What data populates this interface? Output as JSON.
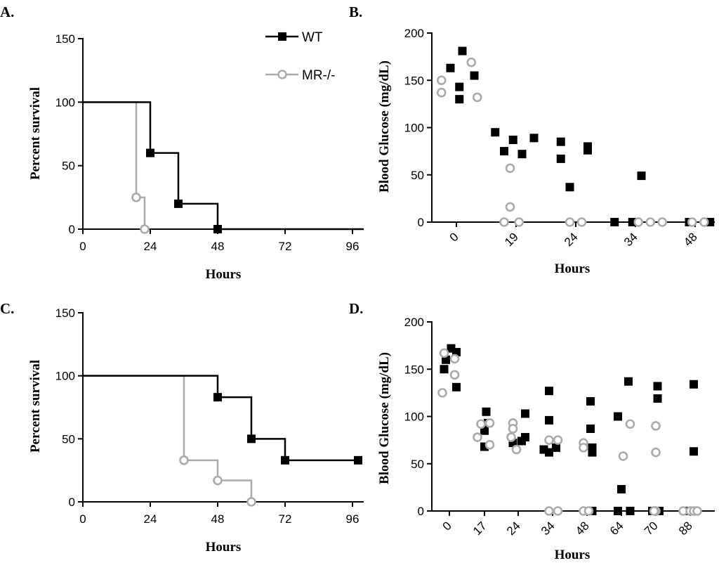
{
  "colors": {
    "wt": "#000000",
    "mr": "#aaaaaa"
  },
  "legend": {
    "wt": "WT",
    "mr": "MR-/-"
  },
  "chart_data": [
    {
      "panel": "A.",
      "type": "line",
      "subtype": "kaplan-meier",
      "xlabel": "Hours",
      "ylabel": "Percent survival",
      "xlim": [
        0,
        100
      ],
      "ylim": [
        0,
        150
      ],
      "xticks": [
        "0",
        "24",
        "48",
        "72",
        "96"
      ],
      "yticks": [
        "0",
        "50",
        "100",
        "150"
      ],
      "series": [
        {
          "name": "WT",
          "steps": [
            [
              0,
              100
            ],
            [
              24,
              100
            ],
            [
              24,
              60
            ],
            [
              34,
              60
            ],
            [
              34,
              20
            ],
            [
              48,
              20
            ],
            [
              48,
              0
            ],
            [
              100,
              0
            ]
          ],
          "markers": [
            [
              24,
              60
            ],
            [
              34,
              20
            ],
            [
              48,
              0
            ]
          ]
        },
        {
          "name": "MR-/-",
          "steps": [
            [
              0,
              100
            ],
            [
              19,
              100
            ],
            [
              19,
              25
            ],
            [
              22,
              25
            ],
            [
              22,
              0
            ]
          ],
          "markers": [
            [
              19,
              25
            ],
            [
              22,
              0
            ]
          ]
        }
      ]
    },
    {
      "panel": "B.",
      "type": "scatter",
      "xlabel": "Hours",
      "ylabel": "Blood Glucose (mg/dL)",
      "ylim": [
        0,
        200
      ],
      "yticks": [
        "0",
        "50",
        "100",
        "150",
        "200"
      ],
      "categories": [
        "0",
        "19",
        "24",
        "34",
        "48"
      ],
      "series": [
        {
          "name": "WT",
          "points": [
            [
              0,
              181,
              0.1
            ],
            [
              0,
              163,
              -0.1
            ],
            [
              0,
              155,
              0.3
            ],
            [
              0,
              143,
              0.05
            ],
            [
              0,
              130,
              0.05
            ],
            [
              1,
              95,
              -0.35
            ],
            [
              1,
              87,
              -0.05
            ],
            [
              1,
              89,
              0.3
            ],
            [
              1,
              75,
              -0.2
            ],
            [
              1,
              72,
              0.1
            ],
            [
              2,
              85,
              -0.25
            ],
            [
              2,
              80,
              0.2
            ],
            [
              2,
              76,
              0.2
            ],
            [
              2,
              67,
              -0.25
            ],
            [
              2,
              37,
              -0.1
            ],
            [
              3,
              49,
              0.1
            ],
            [
              3,
              0,
              -0.35
            ],
            [
              3,
              0,
              -0.05
            ],
            [
              4,
              0,
              -0.1
            ],
            [
              4,
              0,
              0.25
            ]
          ]
        },
        {
          "name": "MR-/-",
          "points": [
            [
              0,
              169,
              0.25
            ],
            [
              0,
              150,
              -0.25
            ],
            [
              0,
              137,
              -0.25
            ],
            [
              0,
              132,
              0.35
            ],
            [
              1,
              57,
              -0.1
            ],
            [
              1,
              16,
              -0.1
            ],
            [
              1,
              0,
              -0.2
            ],
            [
              1,
              0,
              0.05
            ],
            [
              2,
              0,
              -0.1
            ],
            [
              2,
              0,
              0.1
            ],
            [
              3,
              0,
              0.05
            ],
            [
              3,
              0,
              0.25
            ],
            [
              3,
              0,
              0.45
            ],
            [
              4,
              0,
              -0.05
            ],
            [
              4,
              0,
              0.15
            ]
          ]
        }
      ]
    },
    {
      "panel": "C.",
      "type": "line",
      "subtype": "kaplan-meier",
      "xlabel": "Hours",
      "ylabel": "Percent survival",
      "xlim": [
        0,
        100
      ],
      "ylim": [
        0,
        150
      ],
      "xticks": [
        "0",
        "24",
        "48",
        "72",
        "96"
      ],
      "yticks": [
        "0",
        "50",
        "100",
        "150"
      ],
      "series": [
        {
          "name": "WT",
          "steps": [
            [
              0,
              100
            ],
            [
              48,
              100
            ],
            [
              48,
              83
            ],
            [
              60,
              83
            ],
            [
              60,
              50
            ],
            [
              72,
              50
            ],
            [
              72,
              33
            ],
            [
              98,
              33
            ]
          ],
          "markers": [
            [
              48,
              83
            ],
            [
              60,
              50
            ],
            [
              72,
              33
            ],
            [
              98,
              33
            ]
          ]
        },
        {
          "name": "MR-/-",
          "steps": [
            [
              0,
              100
            ],
            [
              36,
              100
            ],
            [
              36,
              33
            ],
            [
              48,
              33
            ],
            [
              48,
              17
            ],
            [
              60,
              17
            ],
            [
              60,
              0
            ]
          ],
          "markers": [
            [
              36,
              33
            ],
            [
              48,
              17
            ],
            [
              60,
              0
            ]
          ]
        }
      ]
    },
    {
      "panel": "D.",
      "type": "scatter",
      "xlabel": "Hours",
      "ylabel": "Blood Glucose (mg/dL)",
      "ylim": [
        0,
        200
      ],
      "yticks": [
        "0",
        "50",
        "100",
        "150",
        "200"
      ],
      "categories": [
        "0",
        "17",
        "24",
        "34",
        "48",
        "64",
        "70",
        "88"
      ],
      "series": [
        {
          "name": "WT",
          "points": [
            [
              0,
              172,
              0.05
            ],
            [
              0,
              168,
              0.2
            ],
            [
              0,
              160,
              -0.1
            ],
            [
              0,
              150,
              -0.15
            ],
            [
              0,
              131,
              0.2
            ],
            [
              1,
              105,
              0.05
            ],
            [
              1,
              93,
              0.1
            ],
            [
              1,
              85,
              0.0
            ],
            [
              1,
              68,
              0.0
            ],
            [
              2,
              103,
              0.2
            ],
            [
              2,
              78,
              0.2
            ],
            [
              2,
              74,
              0.1
            ],
            [
              2,
              72,
              -0.15
            ],
            [
              3,
              127,
              -0.1
            ],
            [
              3,
              96,
              -0.1
            ],
            [
              3,
              65,
              -0.25
            ],
            [
              3,
              62,
              -0.1
            ],
            [
              3,
              67,
              0.1
            ],
            [
              4,
              116,
              0.1
            ],
            [
              4,
              87,
              0.1
            ],
            [
              4,
              67,
              0.15
            ],
            [
              4,
              62,
              0.15
            ],
            [
              4,
              0,
              0.15
            ],
            [
              5,
              137,
              0.2
            ],
            [
              5,
              100,
              -0.1
            ],
            [
              5,
              23,
              0.0
            ],
            [
              5,
              0,
              -0.1
            ],
            [
              5,
              0,
              0.25
            ],
            [
              6,
              132,
              0.05
            ],
            [
              6,
              119,
              0.05
            ],
            [
              6,
              0,
              -0.1
            ],
            [
              6,
              0,
              0.1
            ],
            [
              7,
              134,
              0.1
            ],
            [
              7,
              63,
              0.1
            ],
            [
              7,
              0,
              -0.15
            ],
            [
              7,
              0,
              0.05
            ]
          ]
        },
        {
          "name": "MR-/-",
          "points": [
            [
              0,
              167,
              -0.15
            ],
            [
              0,
              161,
              0.15
            ],
            [
              0,
              144,
              0.15
            ],
            [
              0,
              125,
              -0.2
            ],
            [
              1,
              92,
              -0.1
            ],
            [
              1,
              93,
              0.15
            ],
            [
              1,
              78,
              -0.2
            ],
            [
              1,
              70,
              0.15
            ],
            [
              2,
              93,
              -0.15
            ],
            [
              2,
              87,
              -0.15
            ],
            [
              2,
              78,
              -0.2
            ],
            [
              2,
              65,
              -0.05
            ],
            [
              3,
              75,
              -0.1
            ],
            [
              3,
              75,
              0.15
            ],
            [
              3,
              0,
              -0.1
            ],
            [
              3,
              0,
              0.15
            ],
            [
              4,
              72,
              -0.1
            ],
            [
              4,
              67,
              -0.1
            ],
            [
              4,
              0,
              -0.1
            ],
            [
              4,
              0,
              0.05
            ],
            [
              5,
              92,
              0.25
            ],
            [
              5,
              58,
              0.05
            ],
            [
              6,
              90,
              0.0
            ],
            [
              6,
              62,
              0.0
            ],
            [
              6,
              0,
              0.0
            ],
            [
              6,
              0,
              -0.05
            ],
            [
              7,
              0,
              -0.2
            ],
            [
              7,
              0,
              0.0
            ],
            [
              7,
              0,
              0.1
            ],
            [
              7,
              0,
              0.2
            ]
          ]
        }
      ]
    }
  ]
}
